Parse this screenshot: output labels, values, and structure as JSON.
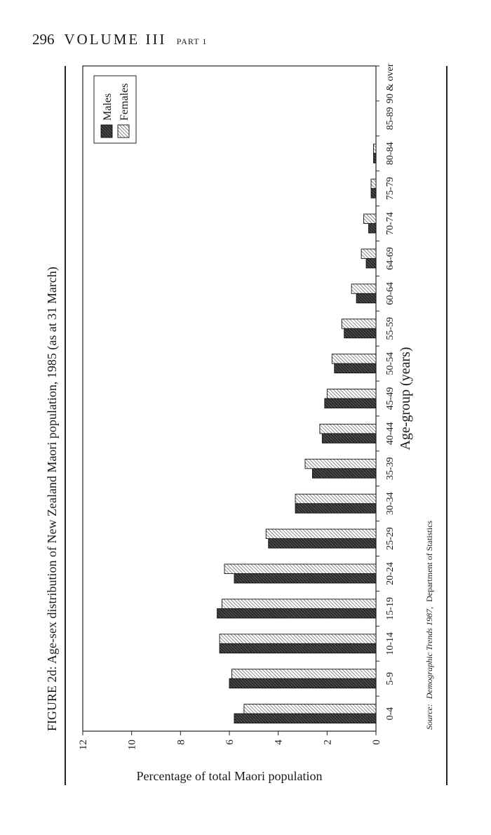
{
  "page": {
    "number": "296",
    "volume": "VOLUME III",
    "part": "PART 1"
  },
  "colors": {
    "males": "#2a2a2a",
    "females": "#ffffff",
    "ink": "#1a1a1a"
  },
  "chart_data": {
    "type": "bar",
    "title": "FIGURE 2d: Age-sex distribution of New Zealand Maori population, 1985 (as at 31 March)",
    "xlabel": "Age-group (years)",
    "ylabel": "Percentage of total Maori population",
    "ylim": [
      0,
      12
    ],
    "yticks": [
      0,
      2,
      4,
      6,
      8,
      10,
      12
    ],
    "orientation": "rotated 90° clockwise on page",
    "legend": "top-right",
    "categories": [
      "0-4",
      "5-9",
      "10-14",
      "15-19",
      "20-24",
      "25-29",
      "30-34",
      "35-39",
      "40-44",
      "45-49",
      "50-54",
      "55-59",
      "60-64",
      "64-69",
      "70-74",
      "75-79",
      "80-84",
      "85-89",
      "90 & over"
    ],
    "series": [
      {
        "name": "Males",
        "pattern": "dense-hatch",
        "values": [
          5.8,
          6.0,
          6.4,
          6.5,
          5.8,
          4.4,
          3.3,
          2.6,
          2.2,
          2.1,
          1.7,
          1.3,
          0.8,
          0.4,
          0.3,
          0.2,
          0.1,
          0.0,
          0.0
        ]
      },
      {
        "name": "Females",
        "pattern": "light-hatch",
        "values": [
          5.4,
          5.9,
          6.4,
          6.3,
          6.2,
          4.5,
          3.3,
          2.9,
          2.3,
          2.0,
          1.8,
          1.4,
          1.0,
          0.6,
          0.5,
          0.2,
          0.1,
          0.0,
          0.0
        ]
      }
    ],
    "source_label": "Source:",
    "source_title": "Demographic Trends 1987,",
    "source_org": "Department of Statistics"
  }
}
